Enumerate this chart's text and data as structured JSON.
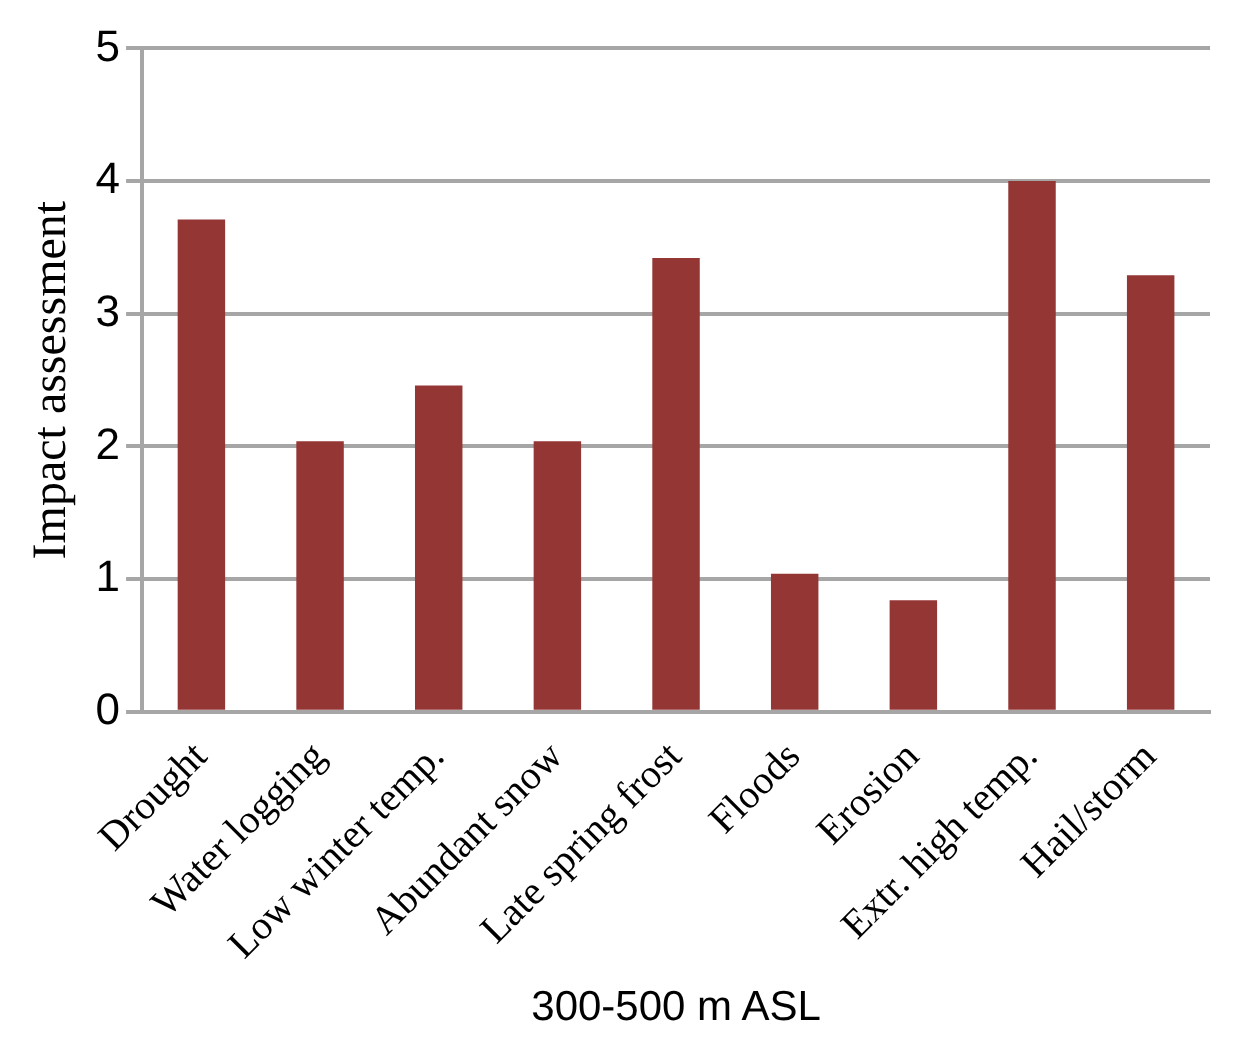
{
  "chart_data": {
    "type": "bar",
    "xlabel": "300-500 m ASL",
    "ylabel": "Impact assessment",
    "categories": [
      "Drought",
      "Water logging",
      "Low winter temp.",
      "Abundant snow",
      "Late spring frost",
      "Floods",
      "Erosion",
      "Extr. high temp.",
      "Hail/storm"
    ],
    "values": [
      3.71,
      2.04,
      2.46,
      2.04,
      3.42,
      1.04,
      0.84,
      4.0,
      3.29
    ],
    "color": "#943634",
    "ylim": [
      0,
      5
    ],
    "yticks": [
      0,
      1,
      2,
      3,
      4,
      5
    ],
    "grid": "y",
    "legend": false
  }
}
